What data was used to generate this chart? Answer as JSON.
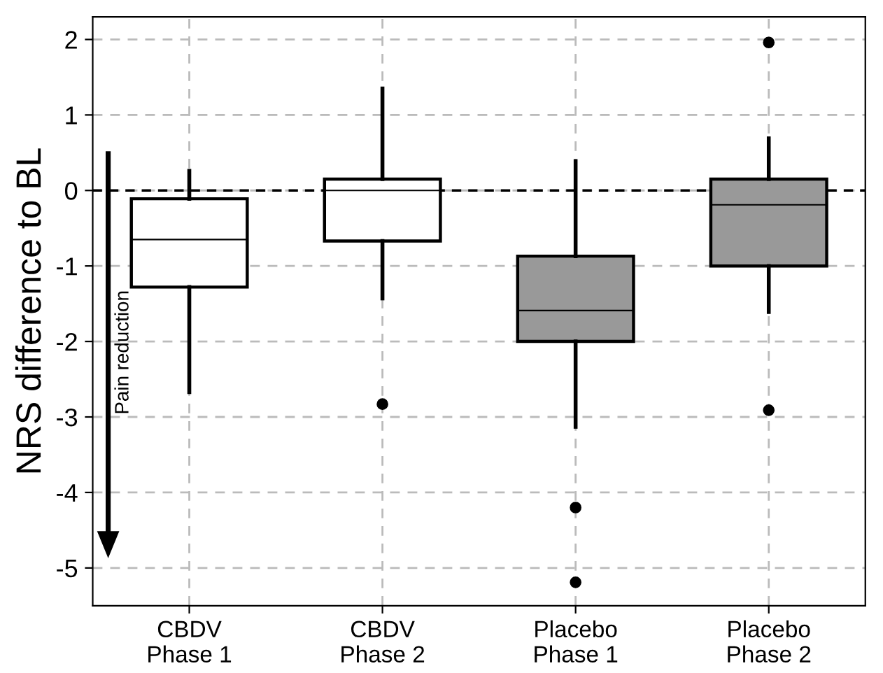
{
  "chart_data": {
    "type": "box",
    "ylabel": "NRS difference to BL",
    "categories": [
      "CBDV\nPhase 1",
      "CBDV\nPhase 2",
      "Placebo\nPhase 1",
      "Placebo\nPhase 2"
    ],
    "colors": [
      "#ffffff",
      "#ffffff",
      "#999999",
      "#999999"
    ],
    "boxes": [
      {
        "low": -2.67,
        "q1": -1.28,
        "median": -0.65,
        "q3": -0.11,
        "high": 0.26
      },
      {
        "low": -1.43,
        "q1": -0.67,
        "median": 0,
        "q3": 0.15,
        "high": 1.35,
        "outliers": [
          -2.83
        ]
      },
      {
        "low": -3.13,
        "q1": -2.0,
        "median": -1.59,
        "q3": -0.87,
        "high": 0.39,
        "outliers": [
          -4.2,
          -5.19
        ]
      },
      {
        "low": -1.61,
        "q1": -1.0,
        "median": -0.19,
        "q3": 0.15,
        "high": 0.69,
        "outliers": [
          1.96,
          -2.91
        ]
      }
    ],
    "ylim": [
      -5.5,
      2.3
    ],
    "yticks": [
      {
        "value": -5,
        "label": "-5"
      },
      {
        "value": -4,
        "label": "-4"
      },
      {
        "value": -3,
        "label": "-3"
      },
      {
        "value": -2,
        "label": "-2"
      },
      {
        "value": -1,
        "label": "-1"
      },
      0,
      1,
      2
    ],
    "grid": true,
    "ref_lines": [
      {
        "axis": "y",
        "value": 0,
        "label": null,
        "color": "#000000",
        "line_style": "dashed"
      }
    ],
    "annotations": [
      "Pain reduction"
    ]
  }
}
